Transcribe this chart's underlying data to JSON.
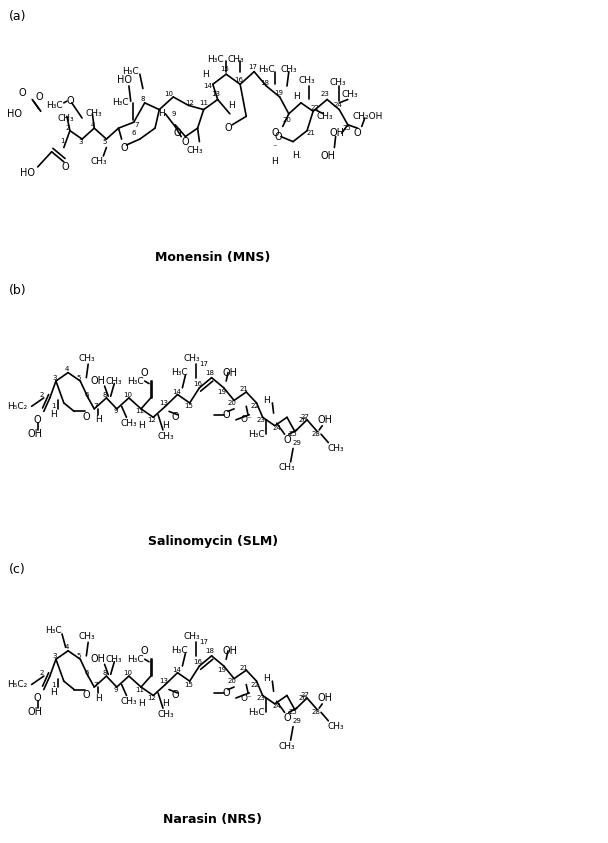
{
  "title_a": "(a)",
  "title_b": "(b)",
  "title_c": "(c)",
  "label_a": "Monensin (MNS)",
  "label_b": "Salinomycin (SLM)",
  "label_c": "Narasin (NRS)",
  "bg_color": "#ffffff",
  "text_color": "#000000",
  "figsize": [
    6.08,
    8.43
  ],
  "dpi": 100
}
